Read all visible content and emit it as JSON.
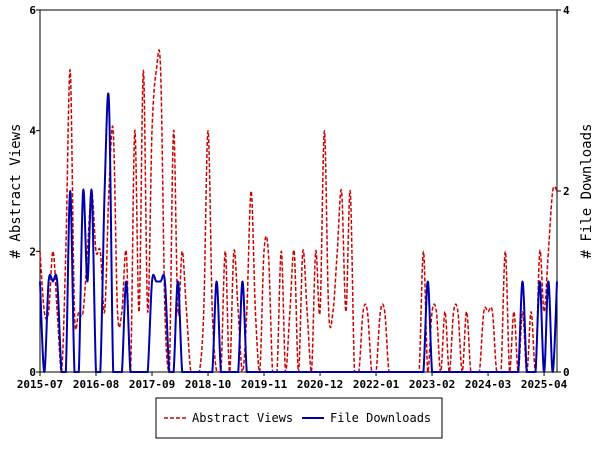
{
  "chart_data": {
    "type": "line",
    "xlabel": "",
    "ylabel_left": "# Abstract Views",
    "ylabel_right": "# File Downloads",
    "ylim_left": [
      0,
      6
    ],
    "ylim_right": [
      0,
      4
    ],
    "yticks_left": [
      "0",
      "2",
      "4",
      "6"
    ],
    "yticks_right": [
      "0",
      "2",
      "4"
    ],
    "xlim": [
      0,
      120
    ],
    "xticks": [
      {
        "label": "2015-07",
        "x": 0
      },
      {
        "label": "2016-08",
        "x": 13
      },
      {
        "label": "2017-09",
        "x": 26
      },
      {
        "label": "2018-10",
        "x": 39
      },
      {
        "label": "2019-11",
        "x": 52
      },
      {
        "label": "2020-12",
        "x": 65
      },
      {
        "label": "2022-01",
        "x": 78
      },
      {
        "label": "2023-02",
        "x": 91
      },
      {
        "label": "2024-03",
        "x": 104
      },
      {
        "label": "2025-04",
        "x": 117
      }
    ],
    "grid": false,
    "legend_position": "bottom",
    "series": [
      {
        "name": "Abstract Views",
        "axis": "left",
        "color": "#cc0000",
        "style": "dashed",
        "x": [
          0,
          1,
          2,
          3,
          4,
          5,
          6,
          7,
          8,
          9,
          10,
          11,
          12,
          13,
          14,
          15,
          16,
          17,
          18,
          19,
          20,
          21,
          22,
          23,
          24,
          25,
          26,
          27,
          28,
          29,
          30,
          31,
          32,
          33,
          34,
          35,
          36,
          37,
          38,
          39,
          40,
          41,
          42,
          43,
          44,
          45,
          46,
          47,
          48,
          49,
          50,
          51,
          52,
          53,
          54,
          55,
          56,
          57,
          58,
          59,
          60,
          61,
          62,
          63,
          64,
          65,
          66,
          67,
          68,
          69,
          70,
          71,
          72,
          73,
          74,
          75,
          76,
          77,
          78,
          79,
          80,
          81,
          82,
          83,
          84,
          85,
          86,
          87,
          88,
          89,
          90,
          91,
          92,
          93,
          94,
          95,
          96,
          97,
          98,
          99,
          100,
          101,
          102,
          103,
          104,
          105,
          106,
          107,
          108,
          109,
          110,
          111,
          112,
          113,
          114,
          115,
          116,
          117,
          118,
          119,
          120
        ],
        "values": [
          2,
          1,
          1,
          2,
          1,
          0,
          2,
          5,
          1,
          1,
          1,
          2,
          3,
          2,
          2,
          1,
          3,
          4,
          1,
          1,
          2,
          0,
          4,
          1,
          5,
          1,
          4,
          5,
          5,
          1,
          0,
          4,
          1,
          2,
          1,
          0,
          0,
          0,
          1,
          4,
          1,
          0,
          0,
          2,
          0,
          2,
          1,
          0,
          1,
          3,
          1,
          0,
          2,
          2,
          0,
          0,
          2,
          0,
          1,
          2,
          0,
          2,
          1,
          0,
          2,
          1,
          4,
          1,
          1,
          2,
          3,
          1,
          3,
          0,
          0,
          1,
          1,
          0,
          0,
          1,
          1,
          0,
          0,
          0,
          0,
          0,
          0,
          0,
          0,
          2,
          0,
          1,
          1,
          0,
          1,
          0,
          1,
          1,
          0,
          1,
          0,
          0,
          0,
          1,
          1,
          1,
          0,
          0,
          2,
          0,
          1,
          0,
          1,
          0,
          1,
          0,
          2,
          1,
          2,
          3,
          3
        ]
      },
      {
        "name": "File Downloads",
        "axis": "right",
        "color": "#0000aa",
        "style": "solid",
        "x": [
          0,
          1,
          2,
          3,
          4,
          5,
          6,
          7,
          8,
          9,
          10,
          11,
          12,
          13,
          14,
          15,
          16,
          17,
          18,
          19,
          20,
          21,
          22,
          23,
          24,
          25,
          26,
          27,
          28,
          29,
          30,
          31,
          32,
          33,
          34,
          35,
          36,
          37,
          38,
          39,
          40,
          41,
          42,
          43,
          44,
          45,
          46,
          47,
          48,
          49,
          50,
          51,
          52,
          53,
          54,
          55,
          56,
          57,
          58,
          59,
          60,
          61,
          62,
          63,
          64,
          65,
          66,
          67,
          68,
          69,
          70,
          71,
          72,
          73,
          74,
          75,
          76,
          77,
          78,
          79,
          80,
          81,
          82,
          83,
          84,
          85,
          86,
          87,
          88,
          89,
          90,
          91,
          92,
          93,
          94,
          95,
          96,
          97,
          98,
          99,
          100,
          101,
          102,
          103,
          104,
          105,
          106,
          107,
          108,
          109,
          110,
          111,
          112,
          113,
          114,
          115,
          116,
          117,
          118,
          119,
          120
        ],
        "values": [
          1,
          0,
          1,
          1,
          1,
          0,
          0,
          2,
          0,
          0,
          2,
          1,
          2,
          0,
          0,
          2,
          3,
          0,
          0,
          0,
          1,
          0,
          0,
          0,
          0,
          0,
          1,
          1,
          1,
          1,
          0,
          0,
          1,
          0,
          0,
          0,
          0,
          0,
          0,
          0,
          0,
          1,
          0,
          0,
          0,
          0,
          0,
          1,
          0,
          0,
          0,
          0,
          0,
          0,
          0,
          0,
          0,
          0,
          0,
          0,
          0,
          0,
          0,
          0,
          0,
          0,
          0,
          0,
          0,
          0,
          0,
          0,
          0,
          0,
          0,
          0,
          0,
          0,
          0,
          0,
          0,
          0,
          0,
          0,
          0,
          0,
          0,
          0,
          0,
          0,
          1,
          0,
          0,
          0,
          0,
          0,
          0,
          0,
          0,
          0,
          0,
          0,
          0,
          0,
          0,
          0,
          0,
          0,
          0,
          0,
          0,
          0,
          1,
          0,
          0,
          0,
          1,
          0,
          1,
          0,
          1
        ]
      }
    ]
  }
}
